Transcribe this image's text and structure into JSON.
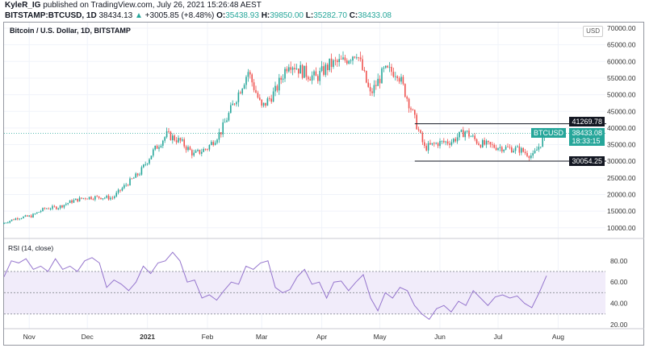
{
  "header": {
    "publisher": "KyleR_IG",
    "published_text": "published on TradingView.com, July 26, 2021 15:26:48 AEST",
    "symbol": "BITSTAMP:BTCUSD, 1D",
    "last": "38434.13",
    "change": "+3005.85 (+8.48%)",
    "o_label": "O:",
    "o": "35438.93",
    "h_label": "H:",
    "h": "39850.00",
    "l_label": "L:",
    "l": "35282.70",
    "c_label": "C:",
    "c": "38433.08"
  },
  "colors": {
    "up": "#26a69a",
    "down": "#ef5350",
    "rsi": "#9575cd",
    "rsi_band": "#f1ecfa"
  },
  "chart_data": [
    {
      "type": "candlestick",
      "title": "Bitcoin / U.S. Dollar, 1D, BITSTAMP",
      "currency": "USD",
      "x_start": "2020-10-19",
      "x_end": "2021-07-26",
      "x_step_days": 7,
      "approx_weekly_closes": [
        11500,
        13000,
        13500,
        15800,
        16200,
        18000,
        19100,
        19200,
        19000,
        23000,
        26500,
        33000,
        38000,
        36000,
        32000,
        34000,
        39000,
        48000,
        57000,
        46000,
        51000,
        60000,
        57000,
        55000,
        59000,
        60000,
        63000,
        50000,
        57000,
        57000,
        46000,
        34000,
        35500,
        36000,
        39000,
        35500,
        34500,
        34000,
        33500,
        31500,
        38433
      ],
      "yticks": [
        "70000.00",
        "65000.00",
        "60000.00",
        "55000.00",
        "50000.00",
        "45000.00",
        "40000.00",
        "35000.00",
        "30000.00",
        "25000.00",
        "20000.00",
        "15000.00",
        "10000.00"
      ],
      "ylim": [
        5000,
        71500
      ],
      "hlines": [
        {
          "value": 41269.78,
          "label": "41269.78",
          "from": "2021-05-19"
        },
        {
          "value": 30054.25,
          "label": "30054.25",
          "from": "2021-05-19"
        }
      ],
      "last_price": {
        "symbol": "BTCUSD",
        "value": 38433.08,
        "label": "38433.08",
        "countdown": "18:33:15"
      }
    },
    {
      "type": "line",
      "title": "RSI (14, close)",
      "ylim": [
        15,
        95
      ],
      "yticks": [
        "80.00",
        "60.00",
        "40.00",
        "20.00"
      ],
      "levels": [
        70,
        50,
        30
      ],
      "values": [
        65,
        80,
        78,
        82,
        72,
        75,
        70,
        82,
        72,
        75,
        70,
        80,
        83,
        78,
        55,
        62,
        58,
        52,
        60,
        75,
        68,
        78,
        80,
        88,
        80,
        60,
        62,
        45,
        48,
        43,
        52,
        60,
        58,
        75,
        72,
        78,
        80,
        55,
        50,
        53,
        65,
        72,
        58,
        60,
        45,
        60,
        61,
        52,
        60,
        67,
        45,
        33,
        50,
        45,
        55,
        52,
        38,
        30,
        25,
        35,
        38,
        32,
        42,
        38,
        52,
        45,
        38,
        46,
        48,
        45,
        47,
        40,
        36,
        50,
        66
      ]
    }
  ],
  "xaxis": {
    "labels": [
      "Nov",
      "Dec",
      "2021",
      "Feb",
      "Mar",
      "Apr",
      "May",
      "Jun",
      "Jul",
      "Aug"
    ],
    "dates": [
      "2020-11-01",
      "2020-12-01",
      "2021-01-01",
      "2021-02-01",
      "2021-03-01",
      "2021-04-01",
      "2021-05-01",
      "2021-06-01",
      "2021-07-01",
      "2021-08-01"
    ]
  }
}
